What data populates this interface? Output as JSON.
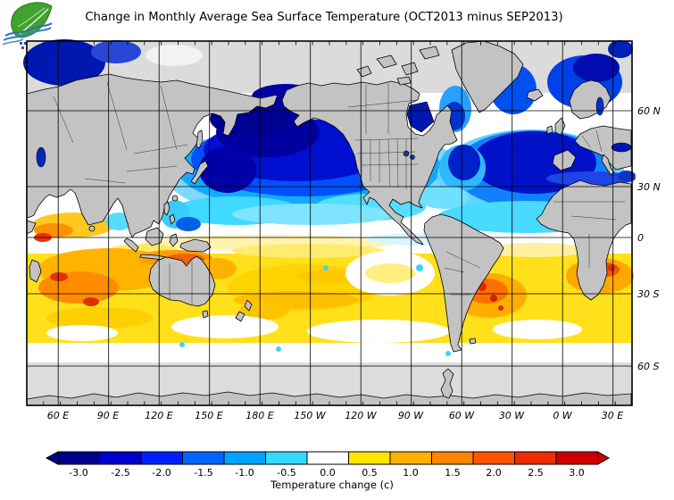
{
  "header": {
    "title": "Change in Monthly Average Sea Surface Temperature (OCT2013 minus SEP2013)"
  },
  "axes": {
    "latitude_labels": [
      "60 N",
      "30 N",
      "0",
      "30 S",
      "60 S"
    ],
    "longitude_labels": [
      "60 E",
      "90 E",
      "120 E",
      "150 E",
      "180 E",
      "150 W",
      "120 W",
      "90 W",
      "60 W",
      "30 W",
      "0 W",
      "30 E"
    ]
  },
  "chart_data": {
    "type": "heatmap",
    "title": "Change in Monthly Average Sea Surface Temperature (OCT2013 minus SEP2013)",
    "projection": "global, Pacific-centered world map (approx 41E eastward through 180 to 41E)",
    "x_axis": {
      "ticks": [
        "60 E",
        "90 E",
        "120 E",
        "150 E",
        "180 E",
        "150 W",
        "120 W",
        "90 W",
        "60 W",
        "30 W",
        "0 W",
        "30 E"
      ],
      "major_tick_interval_deg": 30,
      "minor_tick_interval_deg": 10
    },
    "y_axis": {
      "ticks": [
        "60 N",
        "30 N",
        "0",
        "30 S",
        "60 S"
      ],
      "major_tick_interval_deg": 30
    },
    "grid": true,
    "colorbar": {
      "label": "Temperature change  (c)",
      "units": "C",
      "orientation": "horizontal",
      "position": "bottom",
      "ticks": [
        -3.0,
        -2.5,
        -2.0,
        -1.5,
        -1.0,
        -0.5,
        0.0,
        0.5,
        1.0,
        1.5,
        2.0,
        2.5,
        3.0
      ],
      "tick_labels": [
        "-3.0",
        "-2.5",
        "-2.0",
        "-1.5",
        "-1.0",
        "-0.5",
        "0.0",
        "0.5",
        "1.0",
        "1.5",
        "2.0",
        "2.5",
        "3.0"
      ],
      "colors": [
        "#00008B",
        "#0000CD",
        "#0020FF",
        "#0064FF",
        "#00A2FF",
        "#35D9FF",
        "#FFFFFF",
        "#FFE400",
        "#FFB000",
        "#FF8600",
        "#FF5400",
        "#EB2D00",
        "#CD0000"
      ]
    },
    "regional_values_c": [
      {
        "region": "Arctic Ocean",
        "value": null,
        "note": "ice / no data (light gray)"
      },
      {
        "region": "Northwest Pacific / Sea of Okhotsk / Bering Sea",
        "value": -3.0
      },
      {
        "region": "Central North Pacific (30-55N)",
        "value": -2.0
      },
      {
        "region": "Subtropical North Pacific (20-30N)",
        "value": -0.5
      },
      {
        "region": "Central North Atlantic (30-50N)",
        "value": -2.5
      },
      {
        "region": "Norwegian / Barents Sea",
        "value": -2.5
      },
      {
        "region": "Mediterranean Sea",
        "value": -2.0
      },
      {
        "region": "Equatorial oceans (10N-10S)",
        "value": 0.0
      },
      {
        "region": "Arabian Sea / NW Indian Ocean",
        "value": 1.0,
        "note": "local maxima about 2.5"
      },
      {
        "region": "Southern subtropical belt (10S-40S)",
        "value": 0.75
      },
      {
        "region": "South Indian Ocean (10S-35S)",
        "value": 1.5
      },
      {
        "region": "Southwest Atlantic east of Argentina",
        "value": 2.5
      },
      {
        "region": "Southern Ocean near 55S",
        "value": 0.0
      },
      {
        "region": "Antarctic margin",
        "value": null,
        "note": "ice / no data (light gray)"
      }
    ],
    "land_color": "#C3C3C3",
    "no_data_color": "#DCDCDC"
  }
}
